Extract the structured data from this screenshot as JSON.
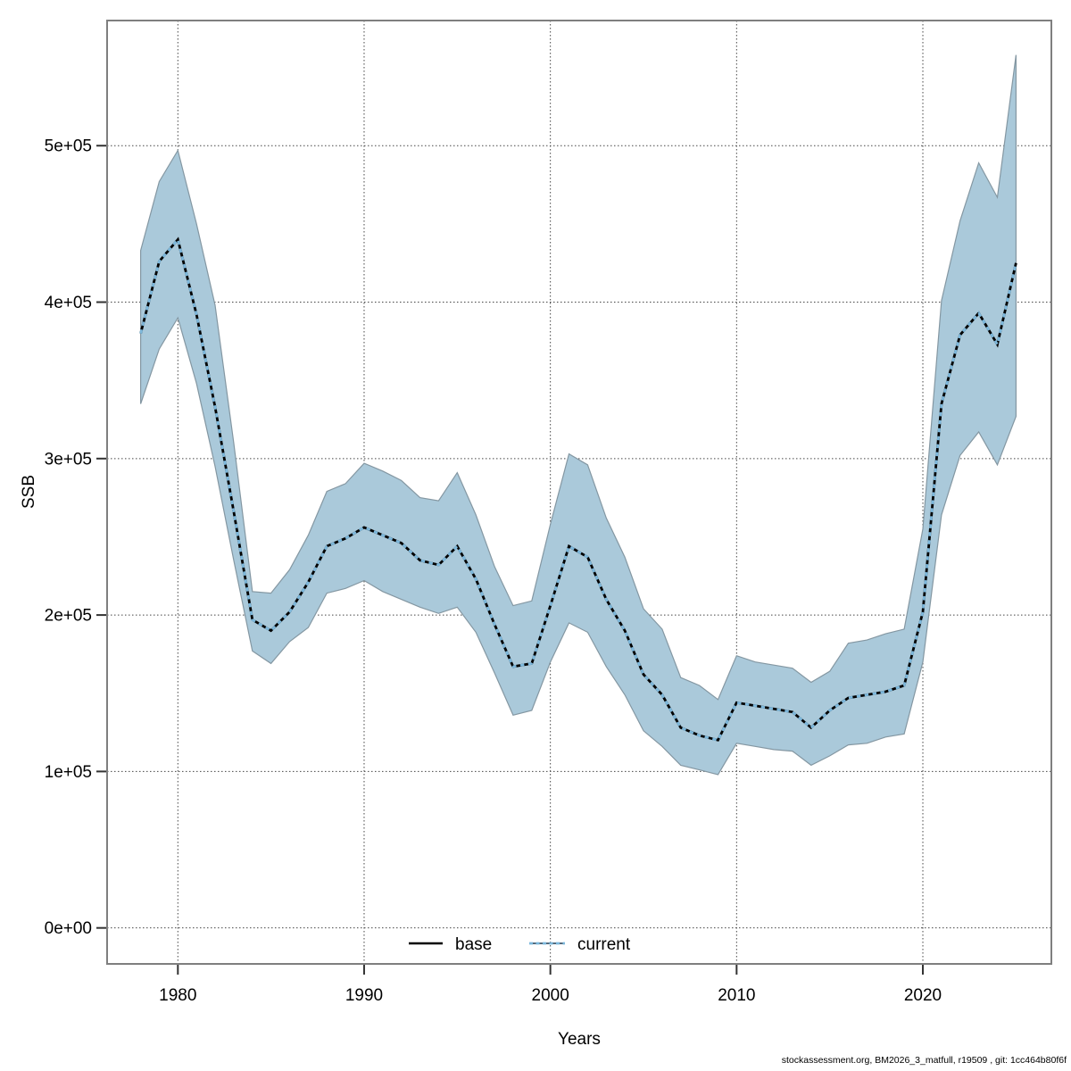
{
  "chart_data": {
    "type": "line",
    "title": "",
    "xlabel": "Years",
    "ylabel": "SSB",
    "footer": "stockassessment.org, BM2026_3_matfull, r19509 , git: 1cc464b80f6f",
    "grid": "dotted",
    "legend_position": "bottom-center-inside",
    "xlim": [
      1976.2,
      2026.9
    ],
    "ylim": [
      -23000,
      580000
    ],
    "x_ticks": [
      {
        "v": 1980,
        "label": "1980"
      },
      {
        "v": 1990,
        "label": "1990"
      },
      {
        "v": 2000,
        "label": "2000"
      },
      {
        "v": 2010,
        "label": "2010"
      },
      {
        "v": 2020,
        "label": "2020"
      }
    ],
    "y_ticks": [
      {
        "v": 0,
        "label": "0e+00"
      },
      {
        "v": 100000,
        "label": "1e+05"
      },
      {
        "v": 200000,
        "label": "2e+05"
      },
      {
        "v": 300000,
        "label": "3e+05"
      },
      {
        "v": 400000,
        "label": "4e+05"
      },
      {
        "v": 500000,
        "label": "5e+05"
      }
    ],
    "years": [
      1978,
      1979,
      1980,
      1981,
      1982,
      1983,
      1984,
      1985,
      1986,
      1987,
      1988,
      1989,
      1990,
      1991,
      1992,
      1993,
      1994,
      1995,
      1996,
      1997,
      1998,
      1999,
      2000,
      2001,
      2002,
      2003,
      2004,
      2005,
      2006,
      2007,
      2008,
      2009,
      2010,
      2011,
      2012,
      2013,
      2014,
      2015,
      2016,
      2017,
      2018,
      2019,
      2020,
      2021,
      2022,
      2023,
      2024,
      2025
    ],
    "series": [
      {
        "name": "base",
        "style": "solid",
        "color": "#000000",
        "values": [
          380000,
          426000,
          440000,
          392000,
          333000,
          266000,
          197000,
          190000,
          202000,
          221000,
          244000,
          249000,
          256000,
          251000,
          246000,
          235000,
          232000,
          244000,
          223000,
          194000,
          167000,
          169000,
          206000,
          244000,
          237000,
          210000,
          190000,
          162000,
          149000,
          128000,
          123000,
          120000,
          144000,
          142000,
          140000,
          138000,
          128000,
          139000,
          147000,
          149000,
          151000,
          155000,
          202000,
          335000,
          379000,
          393000,
          373000,
          425000
        ]
      },
      {
        "name": "current",
        "style": "dotted",
        "color": "#7db8dc",
        "values": [
          380000,
          426000,
          440000,
          392000,
          333000,
          266000,
          197000,
          190000,
          202000,
          221000,
          244000,
          249000,
          256000,
          251000,
          246000,
          235000,
          232000,
          244000,
          223000,
          194000,
          167000,
          169000,
          206000,
          244000,
          237000,
          210000,
          190000,
          162000,
          149000,
          128000,
          123000,
          120000,
          144000,
          142000,
          140000,
          138000,
          128000,
          139000,
          147000,
          149000,
          151000,
          155000,
          202000,
          335000,
          379000,
          393000,
          373000,
          425000
        ]
      }
    ],
    "band": {
      "name": "confidence-interval",
      "fill": "#aac9da",
      "edge": "#8497a2",
      "lower": [
        335000,
        370000,
        390000,
        348000,
        295000,
        235000,
        177000,
        169000,
        183000,
        192000,
        214000,
        217000,
        222000,
        215000,
        210000,
        205000,
        201000,
        205000,
        189000,
        163000,
        136000,
        139000,
        170000,
        195000,
        189000,
        167000,
        149000,
        126000,
        116000,
        104000,
        101000,
        98000,
        118000,
        116000,
        114000,
        113000,
        104000,
        110000,
        117000,
        118000,
        122000,
        124000,
        170000,
        264000,
        302000,
        317000,
        296000,
        327000
      ],
      "upper": [
        433000,
        477000,
        497000,
        450000,
        398000,
        310000,
        215000,
        214000,
        229000,
        251000,
        279000,
        284000,
        297000,
        292000,
        286000,
        275000,
        273000,
        291000,
        264000,
        231000,
        206000,
        209000,
        258000,
        303000,
        296000,
        262000,
        237000,
        204000,
        191000,
        160000,
        155000,
        146000,
        174000,
        170000,
        168000,
        166000,
        157000,
        164000,
        182000,
        184000,
        188000,
        191000,
        255000,
        401000,
        452000,
        489000,
        467000,
        558000
      ]
    },
    "legend": [
      {
        "label": "base"
      },
      {
        "label": "current"
      }
    ]
  },
  "colors": {
    "band_fill": "#aac9da",
    "band_edge": "#8497a2",
    "current_line": "#7db8dc",
    "base_line": "#000000",
    "frame": "#7f7f7f",
    "grid": "#454545",
    "tick": "#333333"
  }
}
